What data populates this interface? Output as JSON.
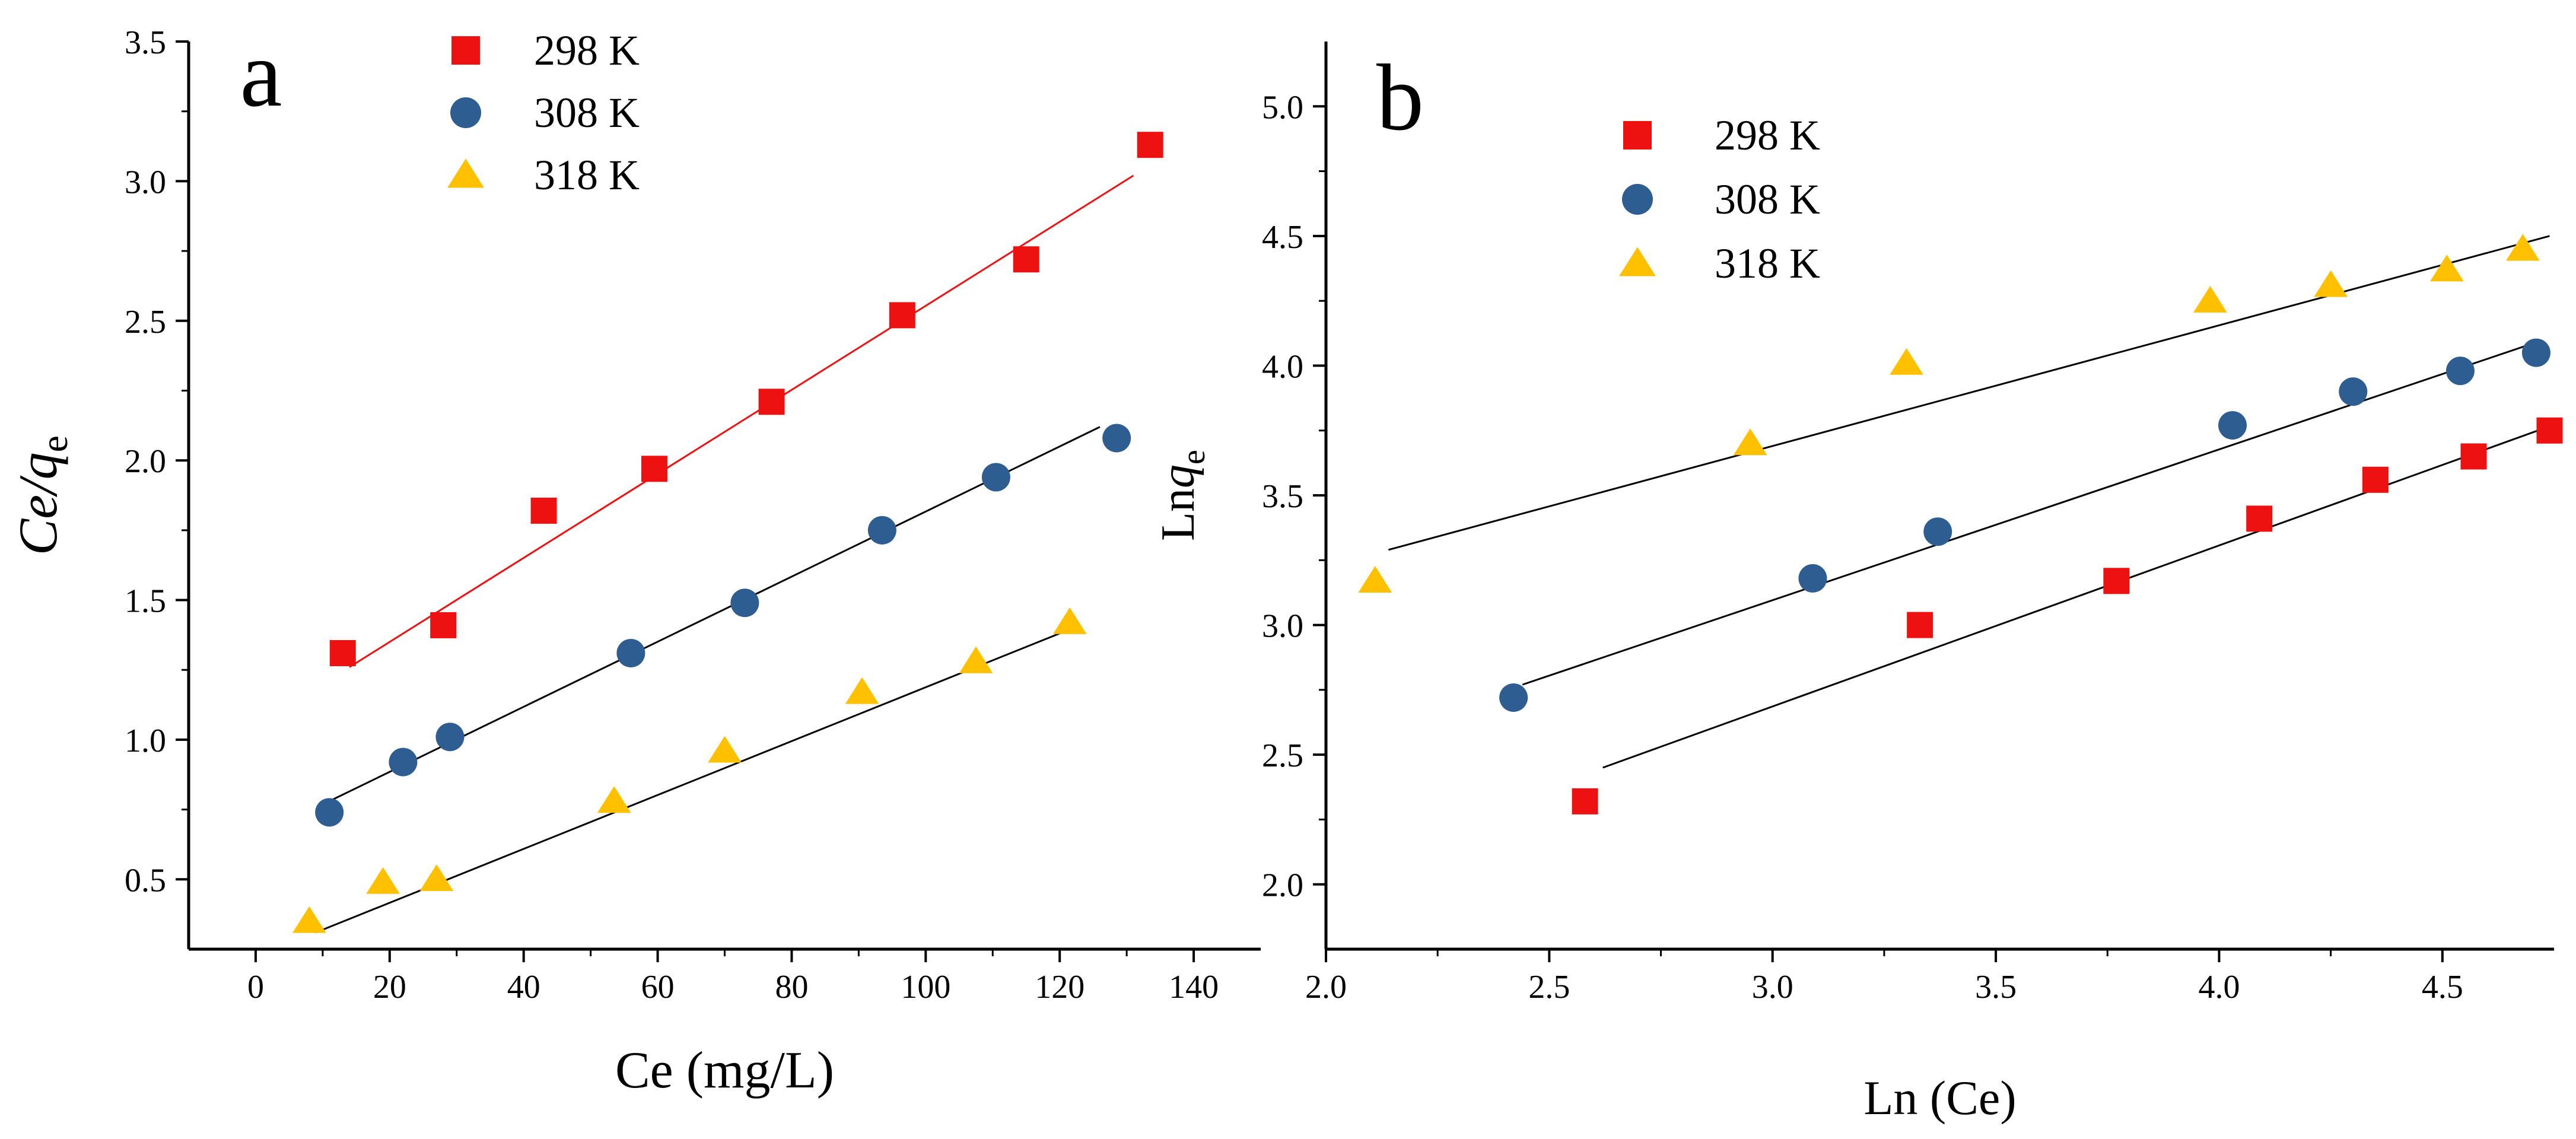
{
  "chart_data": [
    {
      "type": "scatter",
      "panel_label": "a",
      "xlabel": "Ce (mg/L)",
      "ylabel": {
        "main": "Ce/q",
        "sub": "e"
      },
      "xlim": [
        -10,
        150
      ],
      "ylim": [
        0.25,
        3.5
      ],
      "xticks": [
        0,
        20,
        40,
        60,
        80,
        100,
        120,
        140
      ],
      "xtick_labels": [
        "0",
        "20",
        "40",
        "60",
        "80",
        "100",
        "120",
        "140"
      ],
      "yticks": [
        0.5,
        1.0,
        1.5,
        2.0,
        2.5,
        3.0,
        3.5
      ],
      "ytick_labels": [
        "0.5",
        "1.0",
        "1.5",
        "2.0",
        "2.5",
        "3.0",
        "3.5"
      ],
      "legend_position": "top-center",
      "series": [
        {
          "name": "298 K",
          "marker": "square",
          "color": "#ee1111",
          "x": [
            13,
            28,
            43,
            59.5,
            77,
            96.5,
            115,
            133.5
          ],
          "y": [
            1.31,
            1.41,
            1.82,
            1.97,
            2.21,
            2.52,
            2.72,
            3.13
          ],
          "fit": {
            "x": [
              14,
              131
            ],
            "y": [
              1.26,
              3.02
            ],
            "color": "#ee1111"
          }
        },
        {
          "name": "308 K",
          "marker": "circle",
          "color": "#2e5d91",
          "x": [
            11,
            22,
            29,
            56,
            73,
            93.5,
            110.5,
            128.5
          ],
          "y": [
            0.74,
            0.92,
            1.01,
            1.31,
            1.49,
            1.75,
            1.94,
            2.08
          ],
          "fit": {
            "x": [
              11,
              126
            ],
            "y": [
              0.78,
              2.12
            ],
            "color": "#000000"
          }
        },
        {
          "name": "318 K",
          "marker": "triangle",
          "color": "#ffc000",
          "x": [
            8,
            19,
            27,
            53.5,
            70,
            90.5,
            107.5,
            121.5
          ],
          "y": [
            0.35,
            0.49,
            0.5,
            0.78,
            0.96,
            1.17,
            1.28,
            1.42
          ],
          "fit": {
            "x": [
              9,
              122
            ],
            "y": [
              0.31,
              1.4
            ],
            "color": "#000000"
          }
        }
      ]
    },
    {
      "type": "scatter",
      "panel_label": "b",
      "xlabel": "Ln (Ce)",
      "ylabel": {
        "main": "Lnq",
        "sub": "e"
      },
      "xlim": [
        2.0,
        4.75
      ],
      "ylim": [
        1.75,
        5.25
      ],
      "xticks": [
        2.0,
        2.5,
        3.0,
        3.5,
        4.0,
        4.5
      ],
      "xtick_labels": [
        "2.0",
        "2.5",
        "3.0",
        "3.5",
        "4.0",
        "4.5"
      ],
      "yticks": [
        2.0,
        2.5,
        3.0,
        3.5,
        4.0,
        4.5,
        5.0
      ],
      "ytick_labels": [
        "2.0",
        "2.5",
        "3.0",
        "3.5",
        "4.0",
        "4.5",
        "5.0"
      ],
      "legend_position": "top-left",
      "series": [
        {
          "name": "298 K",
          "marker": "square",
          "color": "#ee1111",
          "x": [
            2.58,
            3.33,
            3.77,
            4.09,
            4.35,
            4.57,
            4.74
          ],
          "y": [
            2.32,
            3.0,
            3.17,
            3.41,
            3.56,
            3.65,
            3.75
          ],
          "fit": {
            "x": [
              2.62,
              4.73
            ],
            "y": [
              2.45,
              3.76
            ],
            "color": "#000000"
          }
        },
        {
          "name": "308 K",
          "marker": "circle",
          "color": "#2e5d91",
          "x": [
            2.42,
            3.09,
            3.37,
            4.03,
            4.3,
            4.54,
            4.71
          ],
          "y": [
            2.72,
            3.18,
            3.36,
            3.77,
            3.9,
            3.98,
            4.05
          ],
          "fit": {
            "x": [
              2.44,
              4.71
            ],
            "y": [
              2.77,
              4.09
            ],
            "color": "#000000"
          }
        },
        {
          "name": "318 K",
          "marker": "triangle",
          "color": "#ffc000",
          "x": [
            2.11,
            2.95,
            3.3,
            3.98,
            4.25,
            4.51,
            4.68
          ],
          "y": [
            3.17,
            3.7,
            4.01,
            4.25,
            4.31,
            4.37,
            4.45
          ],
          "fit": {
            "x": [
              2.14,
              4.74
            ],
            "y": [
              3.29,
              4.5
            ],
            "color": "#000000"
          }
        }
      ]
    }
  ]
}
